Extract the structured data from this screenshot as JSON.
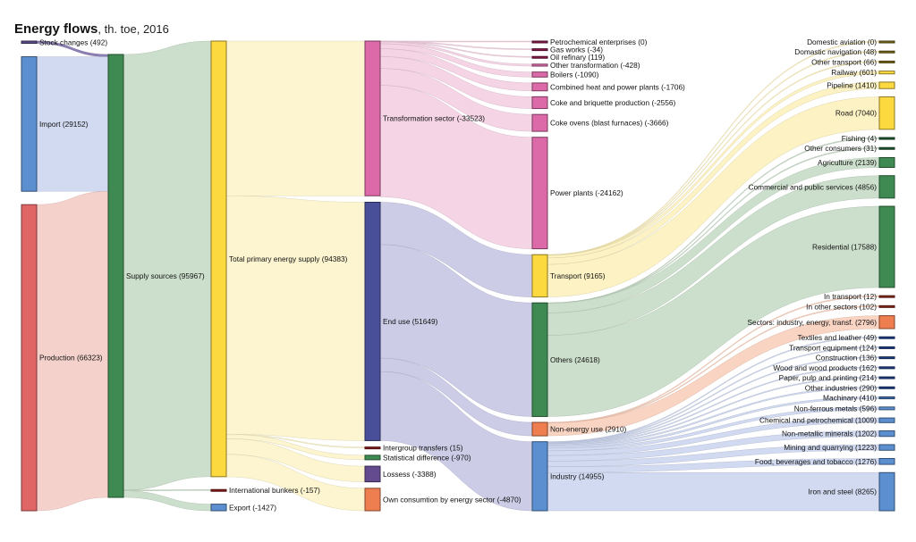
{
  "chart_data": {
    "type": "sankey",
    "title": "Energy flows",
    "subtitle": ", th. toe, 2016",
    "nodes": [
      {
        "id": "stock",
        "label": "Stock changes (492)",
        "value": 492,
        "col": 0,
        "color": "#5b4b8a",
        "labelSide": "right"
      },
      {
        "id": "import",
        "label": "Import (29152)",
        "value": 29152,
        "col": 0,
        "color": "#5b8fd0",
        "labelSide": "inside"
      },
      {
        "id": "production",
        "label": "Production (66323)",
        "value": 66323,
        "col": 0,
        "color": "#e06666",
        "labelSide": "inside"
      },
      {
        "id": "supply",
        "label": "Supply sources (95967)",
        "value": 95967,
        "col": 1,
        "color": "#3f8a52",
        "labelSide": "inside"
      },
      {
        "id": "tpes",
        "label": "Total primary energy supply (94383)",
        "value": 94383,
        "col": 2,
        "color": "#fcd93f",
        "labelSide": "inside"
      },
      {
        "id": "bunkers",
        "label": "International bunkers (-157)",
        "value": 157,
        "col": 2,
        "color": "#8b1a1a",
        "labelSide": "right"
      },
      {
        "id": "export",
        "label": "Export (-1427)",
        "value": 1427,
        "col": 2,
        "color": "#5b8fd0",
        "labelSide": "right"
      },
      {
        "id": "transf",
        "label": "Transformation sector (-33523)",
        "value": 33523,
        "col": 3,
        "color": "#dc6aa8",
        "labelSide": "inside"
      },
      {
        "id": "enduse",
        "label": "End use (51649)",
        "value": 51649,
        "col": 3,
        "color": "#4a4f9a",
        "labelSide": "inside"
      },
      {
        "id": "intergroup",
        "label": "Intergroup transfers (15)",
        "value": 15,
        "col": 3,
        "color": "#8b1a1a",
        "labelSide": "right"
      },
      {
        "id": "statdiff",
        "label": "Statistical difference (-970)",
        "value": 970,
        "col": 3,
        "color": "#3f8a52",
        "labelSide": "right"
      },
      {
        "id": "losses",
        "label": "Lossess (-3388)",
        "value": 3388,
        "col": 3,
        "color": "#644a8e",
        "labelSide": "right"
      },
      {
        "id": "own",
        "label": "Own consumtion by energy sector (-4870)",
        "value": 4870,
        "col": 3,
        "color": "#ee7d50",
        "labelSide": "right"
      },
      {
        "id": "petro",
        "label": "Petrochemical enterprises (0)",
        "value": 0,
        "col": 4,
        "color": "#8b1a4a",
        "labelSide": "right"
      },
      {
        "id": "gasworks",
        "label": "Gas works (-34)",
        "value": 34,
        "col": 4,
        "color": "#8b1a4a",
        "labelSide": "right"
      },
      {
        "id": "oilref",
        "label": "Oil refinary (119)",
        "value": 119,
        "col": 4,
        "color": "#8b1a4a",
        "labelSide": "right"
      },
      {
        "id": "othertr",
        "label": "Other transformation (-428)",
        "value": 428,
        "col": 4,
        "color": "#dc6aa8",
        "labelSide": "right"
      },
      {
        "id": "boilers",
        "label": "Boilers (-1090)",
        "value": 1090,
        "col": 4,
        "color": "#dc6aa8",
        "labelSide": "right"
      },
      {
        "id": "chp",
        "label": "Combined heat and power plants (-1706)",
        "value": 1706,
        "col": 4,
        "color": "#dc6aa8",
        "labelSide": "right"
      },
      {
        "id": "coke",
        "label": "Coke and briquette production (-2556)",
        "value": 2556,
        "col": 4,
        "color": "#dc6aa8",
        "labelSide": "right"
      },
      {
        "id": "cokeovens",
        "label": "Coke ovens (blast furnaces) (-3666)",
        "value": 3666,
        "col": 4,
        "color": "#dc6aa8",
        "labelSide": "right"
      },
      {
        "id": "power",
        "label": "Power plants (-24162)",
        "value": 24162,
        "col": 4,
        "color": "#dc6aa8",
        "labelSide": "right"
      },
      {
        "id": "transport",
        "label": "Transport (9165)",
        "value": 9165,
        "col": 4,
        "color": "#fcd93f",
        "labelSide": "right"
      },
      {
        "id": "others",
        "label": "Others (24618)",
        "value": 24618,
        "col": 4,
        "color": "#3f8a52",
        "labelSide": "right"
      },
      {
        "id": "nonenergy",
        "label": "Non-energy use (2910)",
        "value": 2910,
        "col": 4,
        "color": "#ee7d50",
        "labelSide": "right"
      },
      {
        "id": "industry",
        "label": "Industry (14955)",
        "value": 14955,
        "col": 4,
        "color": "#5b8fd0",
        "labelSide": "right"
      },
      {
        "id": "domav",
        "label": "Domestic aviation (0)",
        "value": 0,
        "col": 5,
        "color": "#7a6a1a",
        "labelSide": "left"
      },
      {
        "id": "domnav",
        "label": "Domastic navigation (48)",
        "value": 48,
        "col": 5,
        "color": "#7a6a1a",
        "labelSide": "left"
      },
      {
        "id": "othtransport",
        "label": "Other transport (66)",
        "value": 66,
        "col": 5,
        "color": "#7a6a1a",
        "labelSide": "left"
      },
      {
        "id": "railway",
        "label": "Railway (601)",
        "value": 601,
        "col": 5,
        "color": "#fcd93f",
        "labelSide": "left"
      },
      {
        "id": "pipeline",
        "label": "Pipeline (1410)",
        "value": 1410,
        "col": 5,
        "color": "#fcd93f",
        "labelSide": "left"
      },
      {
        "id": "road",
        "label": "Road (7040)",
        "value": 7040,
        "col": 5,
        "color": "#fcd93f",
        "labelSide": "left"
      },
      {
        "id": "fishing",
        "label": "Fishing (4)",
        "value": 4,
        "col": 5,
        "color": "#1f5a2f",
        "labelSide": "left"
      },
      {
        "id": "othcons",
        "label": "Other consumers (31)",
        "value": 31,
        "col": 5,
        "color": "#1f5a2f",
        "labelSide": "left"
      },
      {
        "id": "agri",
        "label": "Agriculture (2139)",
        "value": 2139,
        "col": 5,
        "color": "#3f8a52",
        "labelSide": "left"
      },
      {
        "id": "commercial",
        "label": "Commercial and public services (4856)",
        "value": 4856,
        "col": 5,
        "color": "#3f8a52",
        "labelSide": "left"
      },
      {
        "id": "residential",
        "label": "Residential (17588)",
        "value": 17588,
        "col": 5,
        "color": "#3f8a52",
        "labelSide": "left"
      },
      {
        "id": "intransport",
        "label": "In transport (12)",
        "value": 12,
        "col": 5,
        "color": "#8b2a1a",
        "labelSide": "left"
      },
      {
        "id": "inother",
        "label": "In other sectors (102)",
        "value": 102,
        "col": 5,
        "color": "#8b2a1a",
        "labelSide": "left"
      },
      {
        "id": "sectors",
        "label": "Sectors: industry, energy, transf. (2796)",
        "value": 2796,
        "col": 5,
        "color": "#ee7d50",
        "labelSide": "left"
      },
      {
        "id": "textiles",
        "label": "Textiles and leather (49)",
        "value": 49,
        "col": 5,
        "color": "#1f3f8a",
        "labelSide": "left"
      },
      {
        "id": "transeq",
        "label": "Transport equipment (124)",
        "value": 124,
        "col": 5,
        "color": "#1f3f8a",
        "labelSide": "left"
      },
      {
        "id": "construction",
        "label": "Construction (136)",
        "value": 136,
        "col": 5,
        "color": "#1f3f8a",
        "labelSide": "left"
      },
      {
        "id": "wood",
        "label": "Wood and wood products (162)",
        "value": 162,
        "col": 5,
        "color": "#1f3f8a",
        "labelSide": "left"
      },
      {
        "id": "paper",
        "label": "Paper, pulp and printing (214)",
        "value": 214,
        "col": 5,
        "color": "#1f3f8a",
        "labelSide": "left"
      },
      {
        "id": "othind",
        "label": "Other industries (290)",
        "value": 290,
        "col": 5,
        "color": "#1f3f8a",
        "labelSide": "left"
      },
      {
        "id": "machinery",
        "label": "Machinary (410)",
        "value": 410,
        "col": 5,
        "color": "#3f6fb0",
        "labelSide": "left"
      },
      {
        "id": "nonferrous",
        "label": "Non-ferrous metals (596)",
        "value": 596,
        "col": 5,
        "color": "#5b8fd0",
        "labelSide": "left"
      },
      {
        "id": "chemical",
        "label": "Chemical and petrochemical (1009)",
        "value": 1009,
        "col": 5,
        "color": "#5b8fd0",
        "labelSide": "left"
      },
      {
        "id": "nonmetallic",
        "label": "Non-metallic minerals (1202)",
        "value": 1202,
        "col": 5,
        "color": "#5b8fd0",
        "labelSide": "left"
      },
      {
        "id": "mining",
        "label": "Mining and quarrying (1223)",
        "value": 1223,
        "col": 5,
        "color": "#5b8fd0",
        "labelSide": "left"
      },
      {
        "id": "food",
        "label": "Food, beverages and tobacco (1276)",
        "value": 1276,
        "col": 5,
        "color": "#5b8fd0",
        "labelSide": "left"
      },
      {
        "id": "iron",
        "label": "Iron and steel (8265)",
        "value": 8265,
        "col": 5,
        "color": "#5b8fd0",
        "labelSide": "left"
      }
    ],
    "links": [
      {
        "source": "stock",
        "target": "supply",
        "value": 492,
        "color": "#7a6aa8"
      },
      {
        "source": "import",
        "target": "supply",
        "value": 29152,
        "color": "#c9d4ee"
      },
      {
        "source": "production",
        "target": "supply",
        "value": 66323,
        "color": "#f3c9c3"
      },
      {
        "source": "supply",
        "target": "tpes",
        "value": 94383,
        "color": "#c3d9c3"
      },
      {
        "source": "supply",
        "target": "bunkers",
        "value": 157,
        "color": "#c3d9c3"
      },
      {
        "source": "supply",
        "target": "export",
        "value": 1427,
        "color": "#c3d9c3"
      },
      {
        "source": "tpes",
        "target": "transf",
        "value": 33523,
        "color": "#fcf3c8"
      },
      {
        "source": "tpes",
        "target": "enduse",
        "value": 51649,
        "color": "#fcf3c8"
      },
      {
        "source": "tpes",
        "target": "intergroup",
        "value": 15,
        "color": "#fcf3c8"
      },
      {
        "source": "tpes",
        "target": "statdiff",
        "value": 970,
        "color": "#fcf3c8"
      },
      {
        "source": "tpes",
        "target": "losses",
        "value": 3388,
        "color": "#fcf3c8"
      },
      {
        "source": "tpes",
        "target": "own",
        "value": 4870,
        "color": "#fcf3c8"
      },
      {
        "source": "transf",
        "target": "petro",
        "value": 0,
        "color": "#f2cde0"
      },
      {
        "source": "transf",
        "target": "gasworks",
        "value": 34,
        "color": "#f2cde0"
      },
      {
        "source": "transf",
        "target": "oilref",
        "value": 119,
        "color": "#f2cde0"
      },
      {
        "source": "transf",
        "target": "othertr",
        "value": 428,
        "color": "#f2cde0"
      },
      {
        "source": "transf",
        "target": "boilers",
        "value": 1090,
        "color": "#f2cde0"
      },
      {
        "source": "transf",
        "target": "chp",
        "value": 1706,
        "color": "#f2cde0"
      },
      {
        "source": "transf",
        "target": "coke",
        "value": 2556,
        "color": "#f2cde0"
      },
      {
        "source": "transf",
        "target": "cokeovens",
        "value": 3666,
        "color": "#f2cde0"
      },
      {
        "source": "transf",
        "target": "power",
        "value": 24162,
        "color": "#f2cde0"
      },
      {
        "source": "enduse",
        "target": "transport",
        "value": 9165,
        "color": "#c3c3e3"
      },
      {
        "source": "enduse",
        "target": "others",
        "value": 24618,
        "color": "#c3c3e3"
      },
      {
        "source": "enduse",
        "target": "nonenergy",
        "value": 2910,
        "color": "#c3c3e3"
      },
      {
        "source": "enduse",
        "target": "industry",
        "value": 14955,
        "color": "#c3c3e3"
      },
      {
        "source": "transport",
        "target": "domav",
        "value": 0,
        "color": "#fcf0b8"
      },
      {
        "source": "transport",
        "target": "domnav",
        "value": 48,
        "color": "#fcf0b8"
      },
      {
        "source": "transport",
        "target": "othtransport",
        "value": 66,
        "color": "#fcf0b8"
      },
      {
        "source": "transport",
        "target": "railway",
        "value": 601,
        "color": "#fcf0b8"
      },
      {
        "source": "transport",
        "target": "pipeline",
        "value": 1410,
        "color": "#fcf0b8"
      },
      {
        "source": "transport",
        "target": "road",
        "value": 7040,
        "color": "#fcf0b8"
      },
      {
        "source": "others",
        "target": "fishing",
        "value": 4,
        "color": "#c3d9c3"
      },
      {
        "source": "others",
        "target": "othcons",
        "value": 31,
        "color": "#c3d9c3"
      },
      {
        "source": "others",
        "target": "agri",
        "value": 2139,
        "color": "#c3d9c3"
      },
      {
        "source": "others",
        "target": "commercial",
        "value": 4856,
        "color": "#c3d9c3"
      },
      {
        "source": "others",
        "target": "residential",
        "value": 17588,
        "color": "#c3d9c3"
      },
      {
        "source": "nonenergy",
        "target": "intransport",
        "value": 12,
        "color": "#f9cdb8"
      },
      {
        "source": "nonenergy",
        "target": "inother",
        "value": 102,
        "color": "#f9cdb8"
      },
      {
        "source": "nonenergy",
        "target": "sectors",
        "value": 2796,
        "color": "#f9cdb8"
      },
      {
        "source": "industry",
        "target": "textiles",
        "value": 49,
        "color": "#c9d4ee"
      },
      {
        "source": "industry",
        "target": "transeq",
        "value": 124,
        "color": "#c9d4ee"
      },
      {
        "source": "industry",
        "target": "construction",
        "value": 136,
        "color": "#c9d4ee"
      },
      {
        "source": "industry",
        "target": "wood",
        "value": 162,
        "color": "#c9d4ee"
      },
      {
        "source": "industry",
        "target": "paper",
        "value": 214,
        "color": "#c9d4ee"
      },
      {
        "source": "industry",
        "target": "othind",
        "value": 290,
        "color": "#c9d4ee"
      },
      {
        "source": "industry",
        "target": "machinery",
        "value": 410,
        "color": "#c9d4ee"
      },
      {
        "source": "industry",
        "target": "nonferrous",
        "value": 596,
        "color": "#c9d4ee"
      },
      {
        "source": "industry",
        "target": "chemical",
        "value": 1009,
        "color": "#c9d4ee"
      },
      {
        "source": "industry",
        "target": "nonmetallic",
        "value": 1202,
        "color": "#c9d4ee"
      },
      {
        "source": "industry",
        "target": "mining",
        "value": 1223,
        "color": "#c9d4ee"
      },
      {
        "source": "industry",
        "target": "food",
        "value": 1276,
        "color": "#c9d4ee"
      },
      {
        "source": "industry",
        "target": "iron",
        "value": 8265,
        "color": "#c9d4ee"
      }
    ]
  }
}
